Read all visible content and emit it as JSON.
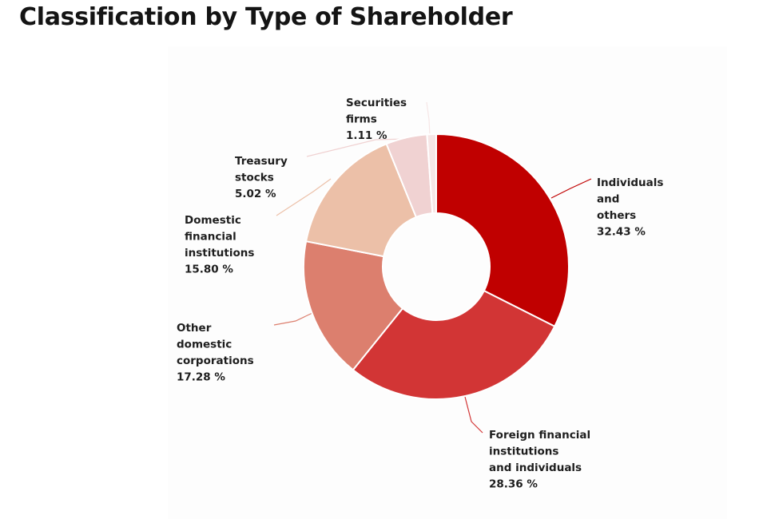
{
  "title": "Classification by Type of Shareholder",
  "chart_data": {
    "type": "pie",
    "donut": true,
    "unit": "%",
    "legend": "none",
    "slices": [
      {
        "key": "individuals",
        "lines": [
          "Individuals",
          "and",
          "others"
        ],
        "value": 32.43,
        "value_label": "32.43 %",
        "color": "#c00000"
      },
      {
        "key": "foreign",
        "lines": [
          "Foreign financial",
          "institutions",
          "and individuals"
        ],
        "value": 28.36,
        "value_label": "28.36 %",
        "color": "#d23535"
      },
      {
        "key": "other-domestic",
        "lines": [
          "Other",
          "domestic",
          "corporations"
        ],
        "value": 17.28,
        "value_label": "17.28 %",
        "color": "#dc7f6e"
      },
      {
        "key": "domestic-financial",
        "lines": [
          "Domestic",
          "financial",
          "institutions"
        ],
        "value": 15.8,
        "value_label": "15.80 %",
        "color": "#ecc0a8"
      },
      {
        "key": "treasury",
        "lines": [
          "Treasury",
          "stocks"
        ],
        "value": 5.02,
        "value_label": "5.02 %",
        "color": "#f0d2d2"
      },
      {
        "key": "securities",
        "lines": [
          "Securities",
          "firms"
        ],
        "value": 1.11,
        "value_label": "1.11 %",
        "color": "#f6e6e6"
      }
    ]
  }
}
